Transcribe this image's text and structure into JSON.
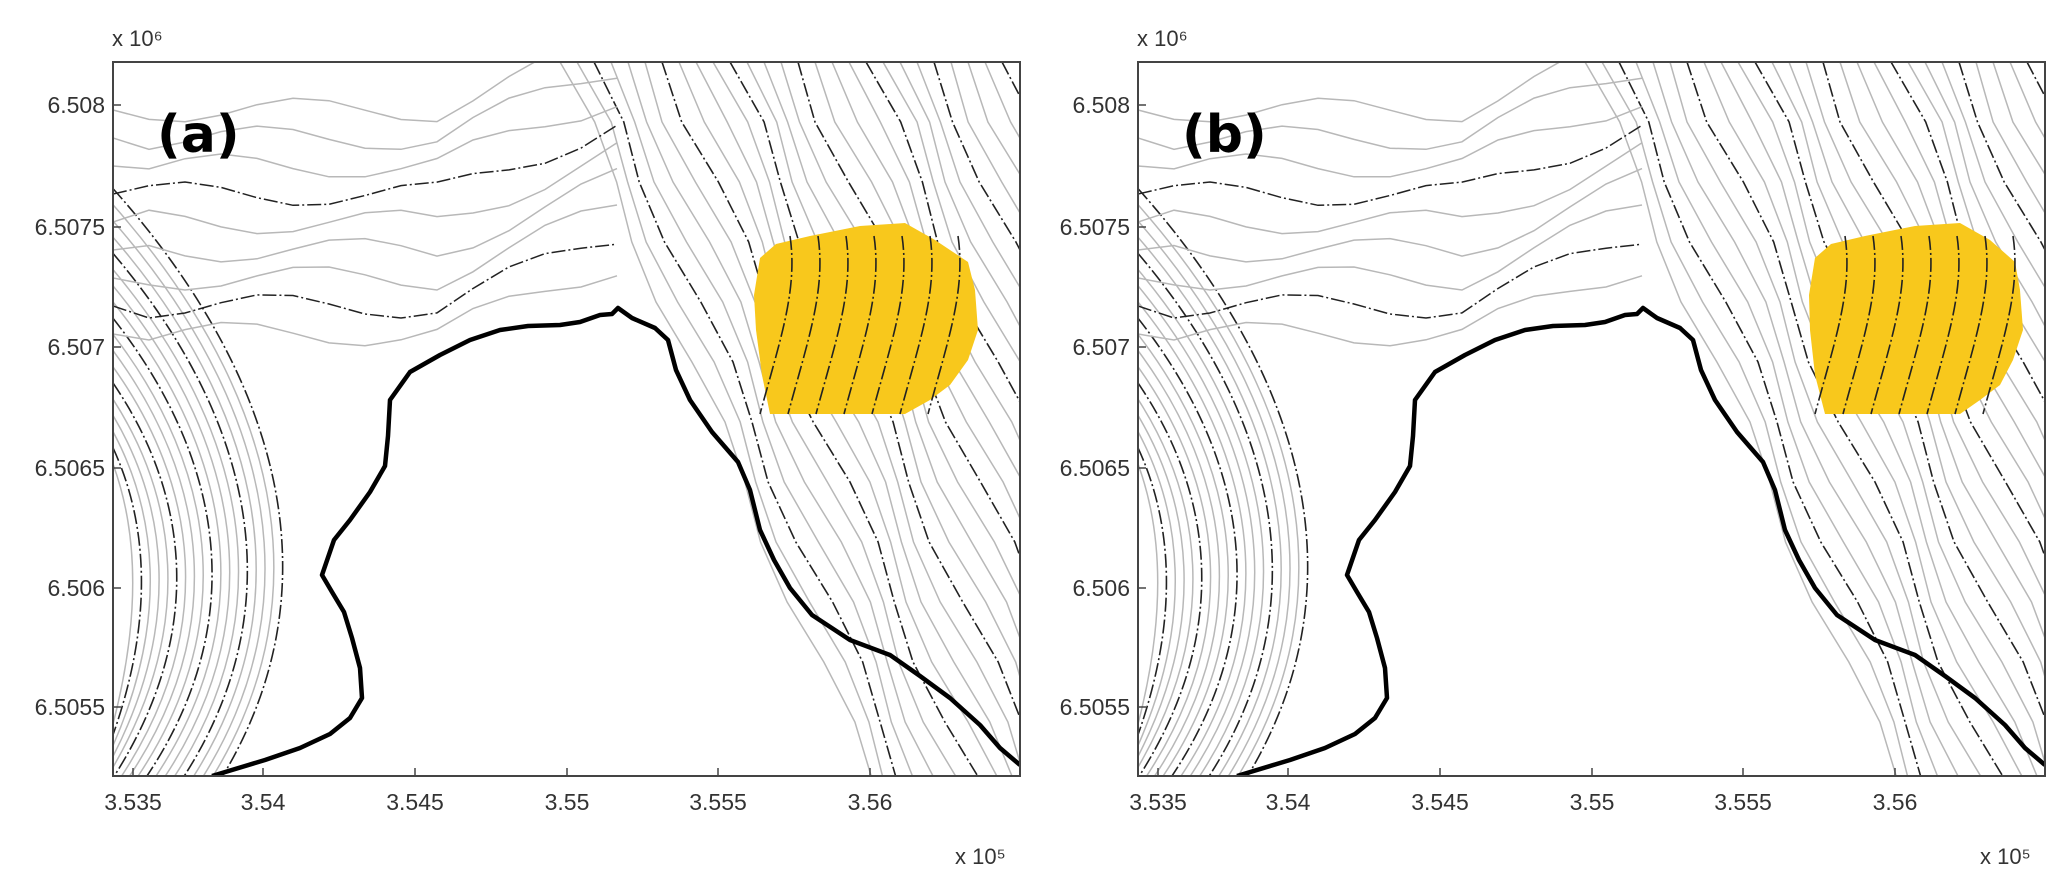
{
  "panels": [
    {
      "id": "a",
      "label": "(a)"
    },
    {
      "id": "b",
      "label": "(b)"
    }
  ],
  "axes": {
    "x_ticks": [
      "3.535",
      "3.54",
      "3.545",
      "3.55",
      "3.555",
      "3.56"
    ],
    "y_ticks": [
      "6.508",
      "6.5075",
      "6.507",
      "6.5065",
      "6.506",
      "6.5055"
    ],
    "x_exponent": "x 10⁵",
    "y_exponent": "x 10⁶"
  },
  "colors": {
    "highlight": "#f8c81c",
    "coastline": "#000000",
    "contour_light": "#b8b8b8",
    "contour_dark": "#222222",
    "frame": "#444444"
  }
}
